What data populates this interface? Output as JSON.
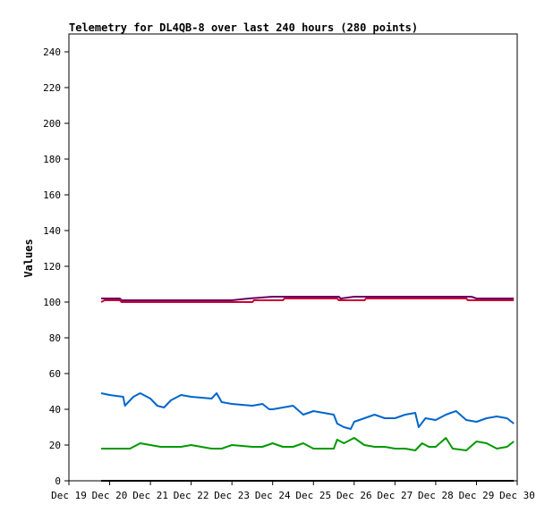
{
  "chart_data": {
    "type": "line",
    "title": "Telemetry for DL4QB-8 over last 240 hours (280 points)",
    "xlabel": "",
    "ylabel": "Values",
    "x_ticks": [
      "Dec 19",
      "Dec 20",
      "Dec 21",
      "Dec 22",
      "Dec 23",
      "Dec 24",
      "Dec 25",
      "Dec 26",
      "Dec 27",
      "Dec 28",
      "Dec 29",
      "Dec 30"
    ],
    "xlim": [
      "Dec 19",
      "Dec 30"
    ],
    "ylim": [
      0,
      250
    ],
    "y_ticks": [
      0,
      20,
      40,
      60,
      80,
      100,
      120,
      140,
      160,
      180,
      200,
      220,
      240
    ],
    "grid": false,
    "legend": "none",
    "series": [
      {
        "color": "#660066",
        "points": [
          [
            "Dec 19 19:00",
            102
          ],
          [
            "Dec 20 06:00",
            102
          ],
          [
            "Dec 20 07:00",
            101
          ],
          [
            "Dec 23 00:00",
            101
          ],
          [
            "Dec 23 10:00",
            102
          ],
          [
            "Dec 24 00:00",
            103
          ],
          [
            "Dec 25 15:00",
            103
          ],
          [
            "Dec 25 16:00",
            102
          ],
          [
            "Dec 26 00:00",
            103
          ],
          [
            "Dec 28 21:00",
            103
          ],
          [
            "Dec 29 00:00",
            102
          ],
          [
            "Dec 29 22:00",
            102
          ]
        ]
      },
      {
        "color": "#cc0033",
        "points": [
          [
            "Dec 19 19:00",
            100
          ],
          [
            "Dec 19 21:00",
            101
          ],
          [
            "Dec 20 06:00",
            101
          ],
          [
            "Dec 20 07:00",
            100
          ],
          [
            "Dec 23 12:00",
            100
          ],
          [
            "Dec 23 13:00",
            101
          ],
          [
            "Dec 24 06:00",
            101
          ],
          [
            "Dec 24 07:00",
            102
          ],
          [
            "Dec 25 14:00",
            102
          ],
          [
            "Dec 25 15:00",
            101
          ],
          [
            "Dec 26 06:00",
            101
          ],
          [
            "Dec 26 07:00",
            102
          ],
          [
            "Dec 28 18:00",
            102
          ],
          [
            "Dec 28 19:00",
            101
          ],
          [
            "Dec 29 22:00",
            101
          ]
        ]
      },
      {
        "color": "#0066cc",
        "points": [
          [
            "Dec 19 19:00",
            49
          ],
          [
            "Dec 20 00:00",
            48
          ],
          [
            "Dec 20 08:00",
            47
          ],
          [
            "Dec 20 09:00",
            42
          ],
          [
            "Dec 20 14:00",
            47
          ],
          [
            "Dec 20 18:00",
            49
          ],
          [
            "Dec 21 00:00",
            46
          ],
          [
            "Dec 21 04:00",
            42
          ],
          [
            "Dec 21 08:00",
            41
          ],
          [
            "Dec 21 12:00",
            45
          ],
          [
            "Dec 21 18:00",
            48
          ],
          [
            "Dec 22 00:00",
            47
          ],
          [
            "Dec 22 12:00",
            46
          ],
          [
            "Dec 22 15:00",
            49
          ],
          [
            "Dec 22 18:00",
            44
          ],
          [
            "Dec 23 00:00",
            43
          ],
          [
            "Dec 23 12:00",
            42
          ],
          [
            "Dec 23 18:00",
            43
          ],
          [
            "Dec 23 22:00",
            40
          ],
          [
            "Dec 24 00:00",
            40
          ],
          [
            "Dec 24 12:00",
            42
          ],
          [
            "Dec 24 18:00",
            37
          ],
          [
            "Dec 25 00:00",
            39
          ],
          [
            "Dec 25 12:00",
            37
          ],
          [
            "Dec 25 14:00",
            32
          ],
          [
            "Dec 25 18:00",
            30
          ],
          [
            "Dec 25 22:00",
            29
          ],
          [
            "Dec 26 00:00",
            33
          ],
          [
            "Dec 26 06:00",
            35
          ],
          [
            "Dec 26 12:00",
            37
          ],
          [
            "Dec 26 18:00",
            35
          ],
          [
            "Dec 27 00:00",
            35
          ],
          [
            "Dec 27 06:00",
            37
          ],
          [
            "Dec 27 12:00",
            38
          ],
          [
            "Dec 27 14:00",
            30
          ],
          [
            "Dec 27 18:00",
            35
          ],
          [
            "Dec 28 00:00",
            34
          ],
          [
            "Dec 28 06:00",
            37
          ],
          [
            "Dec 28 12:00",
            39
          ],
          [
            "Dec 28 18:00",
            34
          ],
          [
            "Dec 29 00:00",
            33
          ],
          [
            "Dec 29 06:00",
            35
          ],
          [
            "Dec 29 12:00",
            36
          ],
          [
            "Dec 29 18:00",
            35
          ],
          [
            "Dec 29 22:00",
            32
          ]
        ]
      },
      {
        "color": "#009900",
        "points": [
          [
            "Dec 19 19:00",
            18
          ],
          [
            "Dec 20 00:00",
            18
          ],
          [
            "Dec 20 12:00",
            18
          ],
          [
            "Dec 20 18:00",
            21
          ],
          [
            "Dec 21 06:00",
            19
          ],
          [
            "Dec 21 18:00",
            19
          ],
          [
            "Dec 22 00:00",
            20
          ],
          [
            "Dec 22 12:00",
            18
          ],
          [
            "Dec 22 18:00",
            18
          ],
          [
            "Dec 23 00:00",
            20
          ],
          [
            "Dec 23 12:00",
            19
          ],
          [
            "Dec 23 18:00",
            19
          ],
          [
            "Dec 24 00:00",
            21
          ],
          [
            "Dec 24 06:00",
            19
          ],
          [
            "Dec 24 12:00",
            19
          ],
          [
            "Dec 24 18:00",
            21
          ],
          [
            "Dec 25 00:00",
            18
          ],
          [
            "Dec 25 12:00",
            18
          ],
          [
            "Dec 25 14:00",
            23
          ],
          [
            "Dec 25 18:00",
            21
          ],
          [
            "Dec 26 00:00",
            24
          ],
          [
            "Dec 26 06:00",
            20
          ],
          [
            "Dec 26 12:00",
            19
          ],
          [
            "Dec 26 18:00",
            19
          ],
          [
            "Dec 27 00:00",
            18
          ],
          [
            "Dec 27 06:00",
            18
          ],
          [
            "Dec 27 12:00",
            17
          ],
          [
            "Dec 27 16:00",
            21
          ],
          [
            "Dec 27 20:00",
            19
          ],
          [
            "Dec 28 00:00",
            19
          ],
          [
            "Dec 28 06:00",
            24
          ],
          [
            "Dec 28 10:00",
            18
          ],
          [
            "Dec 28 18:00",
            17
          ],
          [
            "Dec 29 00:00",
            22
          ],
          [
            "Dec 29 06:00",
            21
          ],
          [
            "Dec 29 12:00",
            18
          ],
          [
            "Dec 29 18:00",
            19
          ],
          [
            "Dec 29 22:00",
            22
          ]
        ]
      },
      {
        "color": "#000000",
        "points": [
          [
            "Dec 19 19:00",
            0
          ],
          [
            "Dec 29 22:00",
            0
          ]
        ]
      }
    ]
  }
}
